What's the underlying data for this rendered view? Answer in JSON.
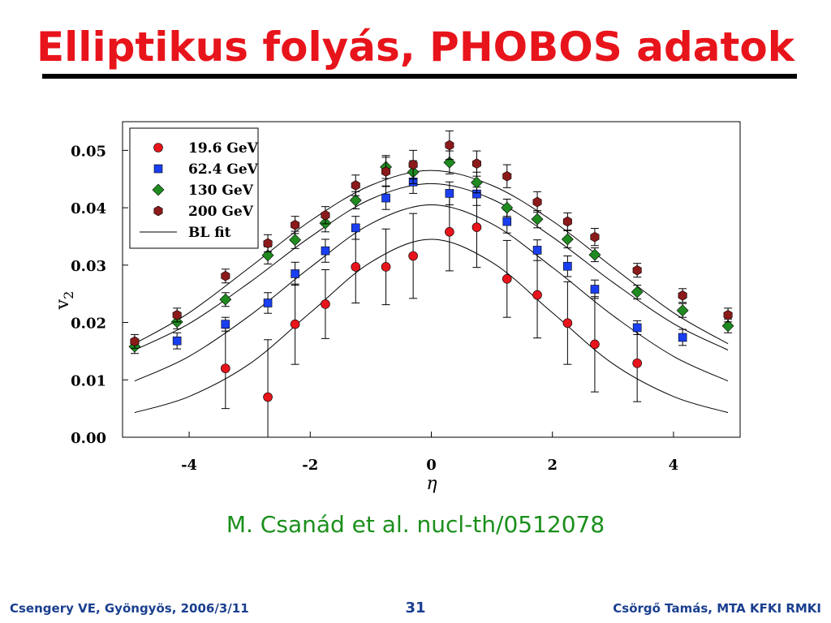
{
  "slide": {
    "title": "Elliptikus folyás, PHOBOS adatok",
    "citation": "M. Csanád et al. nucl-th/0512078",
    "footer_left": "Csengery VE, Gyöngyös, 2006/3/11",
    "page_number": "31",
    "footer_right": "Csörgő Tamás, MTA KFKI RMKI",
    "title_color": "#e8141b",
    "citation_color": "#1a8f1a",
    "footer_color": "#1a3f8f"
  },
  "chart_data": {
    "type": "scatter",
    "title": "",
    "xlabel": "η",
    "ylabel": "v2",
    "xlim": [
      -5.1,
      5.1
    ],
    "ylim": [
      0.0,
      0.055
    ],
    "x_ticks": [
      -4,
      -2,
      0,
      2,
      4
    ],
    "x_tick_labels": [
      "-4",
      "-2",
      "0",
      "2",
      "4"
    ],
    "y_ticks": [
      0.0,
      0.01,
      0.02,
      0.03,
      0.04,
      0.05
    ],
    "y_tick_labels": [
      "0.00",
      "0.01",
      "0.02",
      "0.03",
      "0.04",
      "0.05"
    ],
    "grid": false,
    "legend_position": "top-left",
    "series": [
      {
        "name": "19.6 GeV",
        "marker": "circle",
        "color": "#e8141b",
        "points": [
          {
            "x": -3.4,
            "y": 0.012,
            "err": 0.007
          },
          {
            "x": -2.7,
            "y": 0.007,
            "err": 0.01
          },
          {
            "x": -2.25,
            "y": 0.0197,
            "err": 0.007
          },
          {
            "x": -1.75,
            "y": 0.0232,
            "err": 0.006
          },
          {
            "x": -1.25,
            "y": 0.0297,
            "err": 0.0063
          },
          {
            "x": -0.75,
            "y": 0.0297,
            "err": 0.0066
          },
          {
            "x": -0.3,
            "y": 0.0316,
            "err": 0.0074
          },
          {
            "x": 0.3,
            "y": 0.0358,
            "err": 0.0068
          },
          {
            "x": 0.75,
            "y": 0.0366,
            "err": 0.007
          },
          {
            "x": 1.25,
            "y": 0.0276,
            "err": 0.0067
          },
          {
            "x": 1.75,
            "y": 0.0248,
            "err": 0.0075
          },
          {
            "x": 2.25,
            "y": 0.0199,
            "err": 0.0072
          },
          {
            "x": 2.7,
            "y": 0.0162,
            "err": 0.0083
          },
          {
            "x": 3.4,
            "y": 0.0129,
            "err": 0.0067
          }
        ]
      },
      {
        "name": "62.4 GeV",
        "marker": "square",
        "color": "#1a3ff0",
        "points": [
          {
            "x": -4.2,
            "y": 0.0168,
            "err": 0.0014
          },
          {
            "x": -3.4,
            "y": 0.0197,
            "err": 0.0012
          },
          {
            "x": -2.7,
            "y": 0.0234,
            "err": 0.0018
          },
          {
            "x": -2.25,
            "y": 0.0285,
            "err": 0.002
          },
          {
            "x": -1.75,
            "y": 0.0325,
            "err": 0.002
          },
          {
            "x": -1.25,
            "y": 0.0365,
            "err": 0.002
          },
          {
            "x": -0.75,
            "y": 0.0417,
            "err": 0.002
          },
          {
            "x": -0.3,
            "y": 0.0445,
            "err": 0.002
          },
          {
            "x": 0.3,
            "y": 0.0425,
            "err": 0.002
          },
          {
            "x": 0.75,
            "y": 0.0424,
            "err": 0.002
          },
          {
            "x": 1.25,
            "y": 0.0376,
            "err": 0.002
          },
          {
            "x": 1.75,
            "y": 0.0326,
            "err": 0.0018
          },
          {
            "x": 2.25,
            "y": 0.0298,
            "err": 0.0018
          },
          {
            "x": 2.7,
            "y": 0.0258,
            "err": 0.0016
          },
          {
            "x": 3.4,
            "y": 0.0191,
            "err": 0.0012
          },
          {
            "x": 4.15,
            "y": 0.0174,
            "err": 0.0014
          }
        ]
      },
      {
        "name": "130 GeV",
        "marker": "diamond",
        "color": "#1f8a1f",
        "points": [
          {
            "x": -4.9,
            "y": 0.0158,
            "err": 0.0012
          },
          {
            "x": -4.2,
            "y": 0.0201,
            "err": 0.0012
          },
          {
            "x": -3.4,
            "y": 0.024,
            "err": 0.0012
          },
          {
            "x": -2.7,
            "y": 0.0317,
            "err": 0.0015
          },
          {
            "x": -2.25,
            "y": 0.0344,
            "err": 0.0015
          },
          {
            "x": -1.75,
            "y": 0.0373,
            "err": 0.0015
          },
          {
            "x": -1.25,
            "y": 0.0413,
            "err": 0.0015
          },
          {
            "x": -0.75,
            "y": 0.0471,
            "err": 0.002
          },
          {
            "x": -0.3,
            "y": 0.0462,
            "err": 0.002
          },
          {
            "x": 0.3,
            "y": 0.0479,
            "err": 0.002
          },
          {
            "x": 0.75,
            "y": 0.0444,
            "err": 0.0018
          },
          {
            "x": 1.25,
            "y": 0.04,
            "err": 0.0015
          },
          {
            "x": 1.75,
            "y": 0.038,
            "err": 0.0015
          },
          {
            "x": 2.25,
            "y": 0.0345,
            "err": 0.0015
          },
          {
            "x": 2.7,
            "y": 0.0318,
            "err": 0.0012
          },
          {
            "x": 3.4,
            "y": 0.0253,
            "err": 0.0012
          },
          {
            "x": 4.15,
            "y": 0.0221,
            "err": 0.0012
          },
          {
            "x": 4.9,
            "y": 0.0194,
            "err": 0.0012
          }
        ]
      },
      {
        "name": "200 GeV",
        "marker": "hexagon",
        "color": "#8b1a1a",
        "points": [
          {
            "x": -4.9,
            "y": 0.0167,
            "err": 0.0012
          },
          {
            "x": -4.2,
            "y": 0.0213,
            "err": 0.0012
          },
          {
            "x": -3.4,
            "y": 0.0281,
            "err": 0.0012
          },
          {
            "x": -2.7,
            "y": 0.0338,
            "err": 0.0015
          },
          {
            "x": -2.25,
            "y": 0.037,
            "err": 0.0015
          },
          {
            "x": -1.75,
            "y": 0.0387,
            "err": 0.0015
          },
          {
            "x": -1.25,
            "y": 0.0439,
            "err": 0.0018
          },
          {
            "x": -0.75,
            "y": 0.0463,
            "err": 0.0025
          },
          {
            "x": -0.3,
            "y": 0.0475,
            "err": 0.0025
          },
          {
            "x": 0.3,
            "y": 0.0509,
            "err": 0.0025
          },
          {
            "x": 0.75,
            "y": 0.0477,
            "err": 0.0022
          },
          {
            "x": 1.25,
            "y": 0.0455,
            "err": 0.002
          },
          {
            "x": 1.75,
            "y": 0.041,
            "err": 0.0018
          },
          {
            "x": 2.25,
            "y": 0.0376,
            "err": 0.0015
          },
          {
            "x": 2.7,
            "y": 0.0349,
            "err": 0.0015
          },
          {
            "x": 3.4,
            "y": 0.0291,
            "err": 0.0012
          },
          {
            "x": 4.15,
            "y": 0.0247,
            "err": 0.0012
          },
          {
            "x": 4.9,
            "y": 0.0213,
            "err": 0.0012
          }
        ]
      }
    ],
    "fit_legend_label": "BL fit",
    "fits": [
      {
        "x": [
          -4.9,
          -4,
          -3,
          -2,
          -1,
          0,
          1,
          2,
          3,
          4,
          4.9
        ],
        "y": [
          0.0043,
          0.0071,
          0.0128,
          0.0217,
          0.0305,
          0.0345,
          0.0305,
          0.0217,
          0.0128,
          0.0071,
          0.0043
        ]
      },
      {
        "x": [
          -4.9,
          -4,
          -3,
          -2,
          -1,
          0,
          1,
          2,
          3,
          4,
          4.9
        ],
        "y": [
          0.0098,
          0.0141,
          0.0212,
          0.0296,
          0.0372,
          0.0405,
          0.0372,
          0.0296,
          0.0212,
          0.0141,
          0.0098
        ]
      },
      {
        "x": [
          -4.9,
          -4,
          -3,
          -2,
          -1,
          0,
          1,
          2,
          3,
          4,
          4.9
        ],
        "y": [
          0.0152,
          0.0198,
          0.027,
          0.0349,
          0.0415,
          0.0442,
          0.0415,
          0.0349,
          0.027,
          0.0198,
          0.0152
        ]
      },
      {
        "x": [
          -4.9,
          -4,
          -3,
          -2,
          -1,
          0,
          1,
          2,
          3,
          4,
          4.9
        ],
        "y": [
          0.0163,
          0.0217,
          0.0296,
          0.0377,
          0.0439,
          0.0465,
          0.0439,
          0.0377,
          0.0296,
          0.0217,
          0.0163
        ]
      }
    ]
  }
}
